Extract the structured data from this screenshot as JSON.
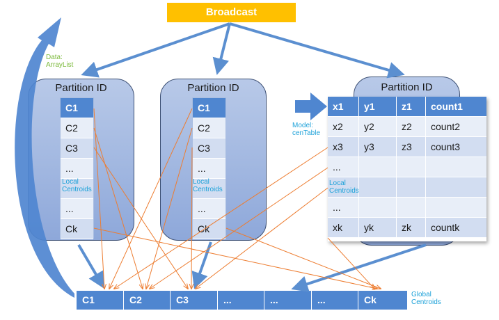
{
  "broadcast_label": "Broadcast",
  "data_label": [
    "Data:",
    "ArrayList"
  ],
  "model_label": [
    "Model:",
    "cenTable"
  ],
  "partition_title": "Partition ID",
  "local_centroids_label": [
    "Local",
    "Centroids"
  ],
  "global_centroids_label": [
    "Global",
    "Centroids"
  ],
  "partitions": [
    {
      "cells": [
        "C1",
        "C2",
        "C3",
        "...",
        "",
        "...",
        "Ck"
      ]
    },
    {
      "cells": [
        "C1",
        "C2",
        "C3",
        "...",
        "",
        "...",
        "Ck"
      ]
    }
  ],
  "cen_table": {
    "header": [
      "x1",
      "y1",
      "z1",
      "count1"
    ],
    "rows": [
      [
        "x2",
        "y2",
        "z2",
        "count2"
      ],
      [
        "x3",
        "y3",
        "z3",
        "count3"
      ],
      [
        "...",
        "",
        "",
        ""
      ],
      [
        "",
        "",
        "",
        ""
      ],
      [
        "...",
        "",
        "",
        ""
      ],
      [
        "xk",
        "yk",
        "zk",
        "countk"
      ]
    ]
  },
  "global_centroids": [
    "C1",
    "C2",
    "C3",
    "...",
    "...",
    "...",
    "Ck"
  ],
  "colors": {
    "broadcast": "#ffc000",
    "cell_header": "#4f86d0",
    "arrow_blue": "#5b8fd0",
    "line_orange": "#ed7d31",
    "label_cyan": "#1ea2d9",
    "label_green": "#7cba3c"
  }
}
